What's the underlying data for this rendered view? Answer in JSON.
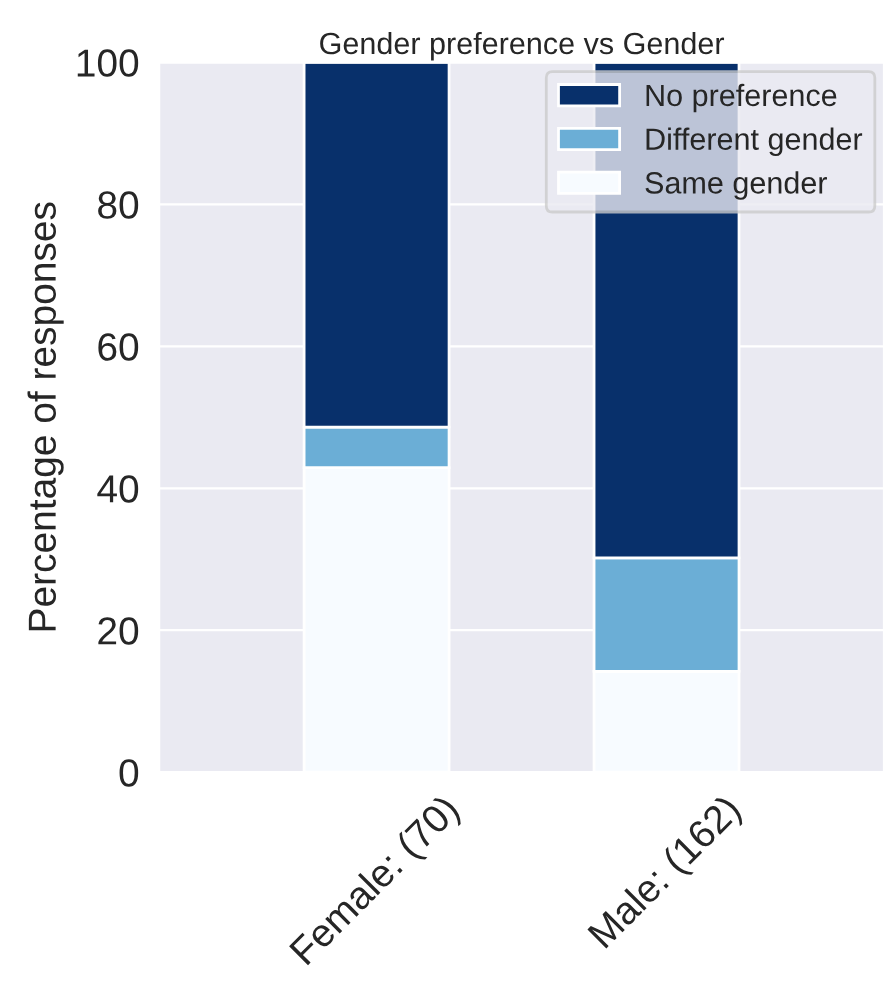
{
  "chart_data": {
    "type": "bar",
    "title": "Gender preference vs Gender",
    "ylabel": "Percentage of responses",
    "categories": [
      "Female: (70)",
      "Male: (162)"
    ],
    "stacked": true,
    "series": [
      {
        "name": "Same gender",
        "color": "#f7fbff",
        "values": [
          42.9,
          14.2
        ]
      },
      {
        "name": "Different gender",
        "color": "#6baed6",
        "values": [
          5.7,
          16.0
        ]
      },
      {
        "name": "No preference",
        "color": "#08306b",
        "values": [
          51.4,
          69.8
        ]
      }
    ],
    "ylim": [
      0,
      100
    ],
    "yticks": [
      0,
      20,
      40,
      60,
      80,
      100
    ],
    "grid": "y",
    "legend": "top right"
  }
}
